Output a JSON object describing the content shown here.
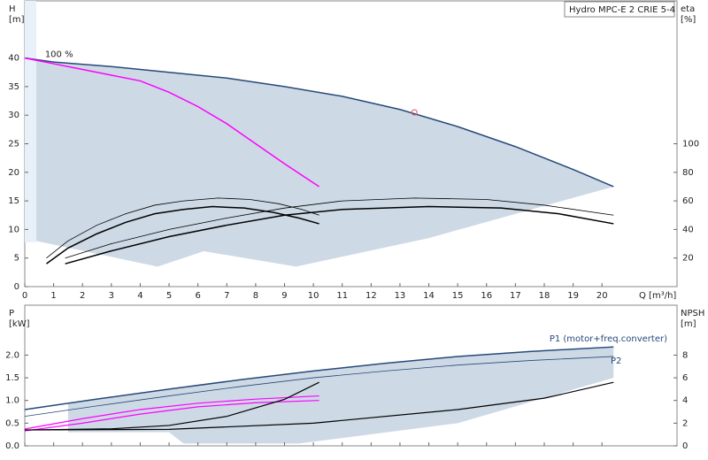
{
  "chart_data": [
    {
      "type": "line",
      "title": "Hydro MPC-E 2 CRIE 5-4",
      "y_label": "H",
      "y_unit": "[m]",
      "y2_label": "eta",
      "y2_unit": "[%]",
      "x_label": "Q [m³/h]",
      "xlim": [
        0,
        22.6
      ],
      "xticks": [
        0,
        1,
        2,
        3,
        4,
        5,
        6,
        7,
        8,
        9,
        10,
        11,
        12,
        13,
        14,
        15,
        16,
        17,
        18,
        19,
        20
      ],
      "ylim": [
        0,
        50
      ],
      "yticks": [
        0,
        5,
        10,
        15,
        20,
        25,
        30,
        35,
        40
      ],
      "y2lim": [
        0,
        200
      ],
      "y2ticks": [
        20,
        40,
        60,
        80,
        100
      ],
      "annotations": [
        {
          "text": "100 %",
          "x": 0.7,
          "y": 40.3
        }
      ],
      "duty_point": {
        "x": 13.5,
        "y": 30.5,
        "color": "#e05050"
      },
      "area": {
        "color": "#cdd9e5",
        "x": [
          0.4,
          0.4,
          1,
          3,
          5,
          7,
          9,
          11,
          13,
          15,
          17,
          19,
          20.4,
          14,
          9.4,
          6.2,
          4.6,
          0.4
        ],
        "y": [
          8,
          39.7,
          39.3,
          38.5,
          37.5,
          36.5,
          35,
          33.3,
          31,
          28,
          24.5,
          20.5,
          17.5,
          8.5,
          3.5,
          6.2,
          3.5,
          8
        ]
      },
      "series": [
        {
          "color": "#27497a",
          "width": 1.5,
          "x": [
            0,
            1,
            3,
            5,
            7,
            9,
            11,
            13,
            15,
            17,
            19,
            20.4
          ],
          "values": [
            40,
            39.3,
            38.5,
            37.5,
            36.5,
            35,
            33.3,
            31,
            28,
            24.5,
            20.5,
            17.5
          ]
        },
        {
          "color": "#ff00ff",
          "width": 1.5,
          "x": [
            0,
            1,
            2,
            3,
            4,
            5,
            6,
            7,
            8,
            9,
            10.2
          ],
          "values": [
            40,
            39,
            38,
            37,
            36,
            34,
            31.5,
            28.5,
            25,
            21.5,
            17.5
          ]
        },
        {
          "color": "#000000",
          "width": 0.8,
          "axis": "y2",
          "x": [
            0.75,
            1.5,
            2.5,
            3.5,
            4.5,
            5.5,
            6.7,
            7.8,
            8.8,
            9.6,
            10.2
          ],
          "values": [
            20,
            32,
            43,
            51,
            57,
            60,
            62,
            61,
            58,
            54,
            50
          ]
        },
        {
          "color": "#000000",
          "width": 1.5,
          "axis": "y2",
          "x": [
            0.75,
            1.5,
            2.5,
            3.5,
            4.5,
            5.5,
            6.5,
            7.6,
            8.6,
            9.5,
            10.2
          ],
          "values": [
            16,
            27,
            37,
            45,
            51,
            54,
            56,
            55,
            52,
            48,
            44
          ]
        },
        {
          "color": "#000000",
          "width": 0.8,
          "axis": "y2",
          "x": [
            1.4,
            3,
            5,
            7,
            9,
            11,
            13.5,
            16,
            18,
            20.4
          ],
          "values": [
            20,
            30,
            40,
            48,
            55,
            60,
            62,
            61,
            57,
            50
          ]
        },
        {
          "color": "#000000",
          "width": 1.5,
          "axis": "y2",
          "x": [
            1.4,
            3,
            5,
            7,
            9,
            11,
            14,
            16.5,
            18.5,
            20.4
          ],
          "values": [
            16,
            25,
            35,
            43,
            50,
            54,
            56,
            55,
            51,
            44
          ]
        }
      ]
    },
    {
      "type": "line",
      "y_label": "P",
      "y_unit": "[kW]",
      "y2_label": "NPSH",
      "y2_unit": "[m]",
      "xlim": [
        0,
        22.6
      ],
      "xticks": [
        0,
        1,
        2,
        3,
        4,
        5,
        6,
        7,
        8,
        9,
        10,
        11,
        12,
        13,
        14,
        15,
        16,
        17,
        18,
        19,
        20
      ],
      "ylim": [
        0,
        3.1
      ],
      "yticks": [
        {
          "value": 0,
          "label": "0.0"
        },
        0.5,
        {
          "value": 1,
          "label": "1.0"
        },
        1.5,
        {
          "value": 2,
          "label": "2.0"
        }
      ],
      "y2lim": [
        0,
        12.4
      ],
      "y2ticks": [
        0,
        2,
        4,
        6,
        8
      ],
      "area": {
        "color": "#cdd9e5",
        "x": [
          1.5,
          1.5,
          5,
          10,
          15,
          20.4,
          20.4,
          15,
          9.5,
          5.5,
          5
        ],
        "y": [
          0.3,
          0.95,
          1.25,
          1.65,
          1.97,
          2.18,
          1.5,
          0.5,
          0.05,
          0.05,
          0.3
        ]
      },
      "series": [
        {
          "name": "P1 (motor+freq.converter)",
          "color": "#27497a",
          "width": 1.5,
          "x": [
            0,
            2.5,
            5,
            7.5,
            10,
            12.5,
            15,
            17.5,
            20.4
          ],
          "values": [
            0.8,
            1.03,
            1.25,
            1.46,
            1.65,
            1.82,
            1.97,
            2.08,
            2.18
          ]
        },
        {
          "name": "P2",
          "color": "#27497a",
          "width": 0.8,
          "x": [
            0,
            2.5,
            5,
            7.5,
            10,
            12.5,
            15,
            17.5,
            20.4
          ],
          "values": [
            0.65,
            0.88,
            1.1,
            1.31,
            1.5,
            1.65,
            1.78,
            1.88,
            1.97
          ]
        },
        {
          "color": "#ff00ff",
          "width": 1.2,
          "x": [
            0,
            2,
            4,
            6,
            8,
            10.2
          ],
          "values": [
            0.37,
            0.6,
            0.8,
            0.94,
            1.03,
            1.1
          ]
        },
        {
          "color": "#ff00ff",
          "width": 1.2,
          "x": [
            0,
            2,
            4,
            6,
            8,
            10.2
          ],
          "values": [
            0.33,
            0.5,
            0.7,
            0.86,
            0.95,
            1.0
          ]
        },
        {
          "color": "#000000",
          "width": 1.2,
          "axis": "y2",
          "x": [
            0,
            3,
            5,
            7,
            9,
            10.2
          ],
          "values": [
            1.4,
            1.5,
            1.8,
            2.6,
            4.1,
            5.6
          ]
        },
        {
          "color": "#000000",
          "width": 1.2,
          "axis": "y2",
          "x": [
            0,
            5,
            10,
            15,
            18,
            20.4
          ],
          "values": [
            1.4,
            1.45,
            2,
            3.2,
            4.2,
            5.6
          ]
        }
      ]
    }
  ]
}
